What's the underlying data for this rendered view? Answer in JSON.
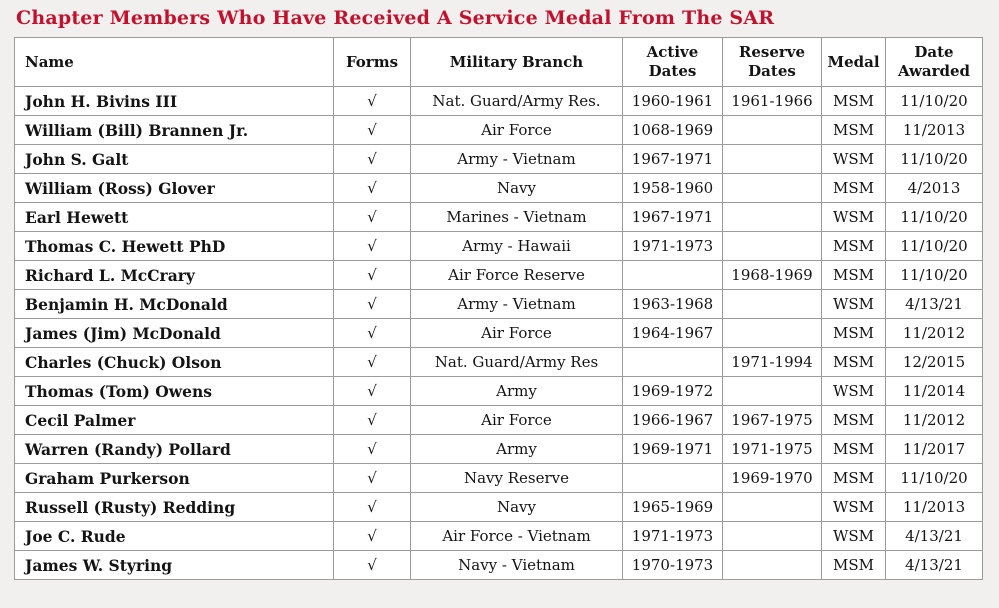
{
  "title": "Chapter Members Who Have Received A Service Medal From The SAR",
  "colors": {
    "title_red": "#c3112d",
    "border_gray": "#9b9b9b",
    "page_background": "#f2f0ee",
    "cell_background": "#ffffff",
    "text": "#141414"
  },
  "checkmark_symbol": "√",
  "table": {
    "columns": [
      {
        "key": "name",
        "label": "Name"
      },
      {
        "key": "forms",
        "label": "Forms"
      },
      {
        "key": "branch",
        "label": "Military Branch"
      },
      {
        "key": "active",
        "label": "Active\nDates"
      },
      {
        "key": "reserve",
        "label": "Reserve\nDates"
      },
      {
        "key": "medal",
        "label": "Medal"
      },
      {
        "key": "awarded",
        "label": "Date\nAwarded"
      }
    ],
    "rows": [
      [
        "John H. Bivins III",
        "√",
        "Nat. Guard/Army Res.",
        "1960-1961",
        "1961-1966",
        "MSM",
        "11/10/20"
      ],
      [
        "William (Bill) Brannen Jr.",
        "√",
        "Air Force",
        "1068-1969",
        "",
        "MSM",
        "11/2013"
      ],
      [
        "John S. Galt",
        "√",
        "Army - Vietnam",
        "1967-1971",
        "",
        "WSM",
        "11/10/20"
      ],
      [
        "William (Ross) Glover",
        "√",
        "Navy",
        "1958-1960",
        "",
        "MSM",
        "4/2013"
      ],
      [
        "Earl Hewett",
        "√",
        "Marines - Vietnam",
        "1967-1971",
        "",
        "WSM",
        "11/10/20"
      ],
      [
        "Thomas C. Hewett PhD",
        "√",
        "Army - Hawaii",
        "1971-1973",
        "",
        "MSM",
        "11/10/20"
      ],
      [
        "Richard L. McCrary",
        "√",
        "Air Force Reserve",
        "",
        "1968-1969",
        "MSM",
        "11/10/20"
      ],
      [
        "Benjamin H. McDonald",
        "√",
        "Army - Vietnam",
        "1963-1968",
        "",
        "WSM",
        "4/13/21"
      ],
      [
        "James (Jim) McDonald",
        "√",
        "Air Force",
        "1964-1967",
        "",
        "MSM",
        "11/2012"
      ],
      [
        "Charles (Chuck) Olson",
        "√",
        "Nat. Guard/Army Res",
        "",
        "1971-1994",
        "MSM",
        "12/2015"
      ],
      [
        "Thomas (Tom) Owens",
        "√",
        "Army",
        "1969-1972",
        "",
        "WSM",
        "11/2014"
      ],
      [
        "Cecil Palmer",
        "√",
        "Air Force",
        "1966-1967",
        "1967-1975",
        "MSM",
        "11/2012"
      ],
      [
        "Warren (Randy) Pollard",
        "√",
        "Army",
        "1969-1971",
        "1971-1975",
        "MSM",
        "11/2017"
      ],
      [
        "Graham Purkerson",
        "√",
        "Navy Reserve",
        "",
        "1969-1970",
        "MSM",
        "11/10/20"
      ],
      [
        "Russell (Rusty) Redding",
        "√",
        "Navy",
        "1965-1969",
        "",
        "WSM",
        "11/2013"
      ],
      [
        "Joe C. Rude",
        "√",
        "Air Force - Vietnam",
        "1971-1973",
        "",
        "WSM",
        "4/13/21"
      ],
      [
        "James W. Styring",
        "√",
        "Navy - Vietnam",
        "1970-1973",
        "",
        "MSM",
        "4/13/21"
      ]
    ]
  }
}
